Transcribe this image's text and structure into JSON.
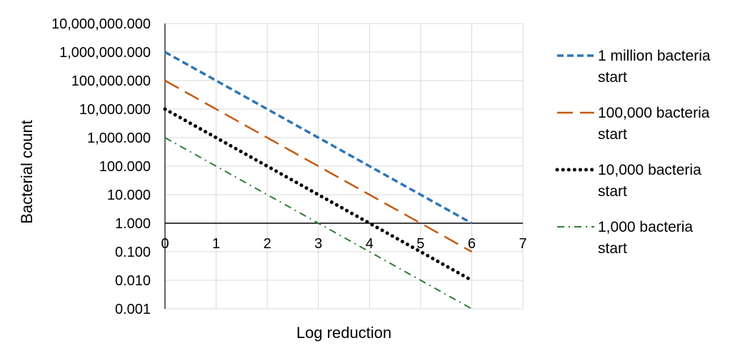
{
  "chart_data": {
    "type": "line",
    "title": "",
    "xlabel": "Log reduction",
    "ylabel": "Bacterial count",
    "xlim": [
      0,
      7
    ],
    "ylim": [
      0.001,
      10000000
    ],
    "y_scale": "log",
    "grid": true,
    "legend_position": "right",
    "x_ticks": [
      "0",
      "1",
      "2",
      "3",
      "4",
      "5",
      "6",
      "7"
    ],
    "y_ticks": [
      "10,000,000.000",
      "1,000,000.000",
      "100,000.000",
      "10,000.000",
      "1,000.000",
      "100.000",
      "10.000",
      "1.000",
      "0.100",
      "0.010",
      "0.001"
    ],
    "x": [
      0,
      1,
      2,
      3,
      4,
      5,
      6
    ],
    "series": [
      {
        "name_lines": [
          "1 million bacteria",
          "start"
        ],
        "color": "#2E75B6",
        "style": "dash",
        "values": [
          1000000,
          100000,
          10000,
          1000,
          100,
          10,
          1
        ]
      },
      {
        "name_lines": [
          "100,000 bacteria",
          "start"
        ],
        "color": "#C55A11",
        "style": "longdash",
        "values": [
          100000,
          10000,
          1000,
          100,
          10,
          1,
          0.1
        ]
      },
      {
        "name_lines": [
          "10,000 bacteria",
          "start"
        ],
        "color": "#000000",
        "style": "dot",
        "values": [
          10000,
          1000,
          100,
          10,
          1,
          0.1,
          0.01
        ]
      },
      {
        "name_lines": [
          "1,000 bacteria",
          "start"
        ],
        "color": "#2E7D32",
        "style": "dashdot",
        "values": [
          1000,
          100,
          10,
          1,
          0.1,
          0.01,
          0.001
        ]
      }
    ]
  }
}
